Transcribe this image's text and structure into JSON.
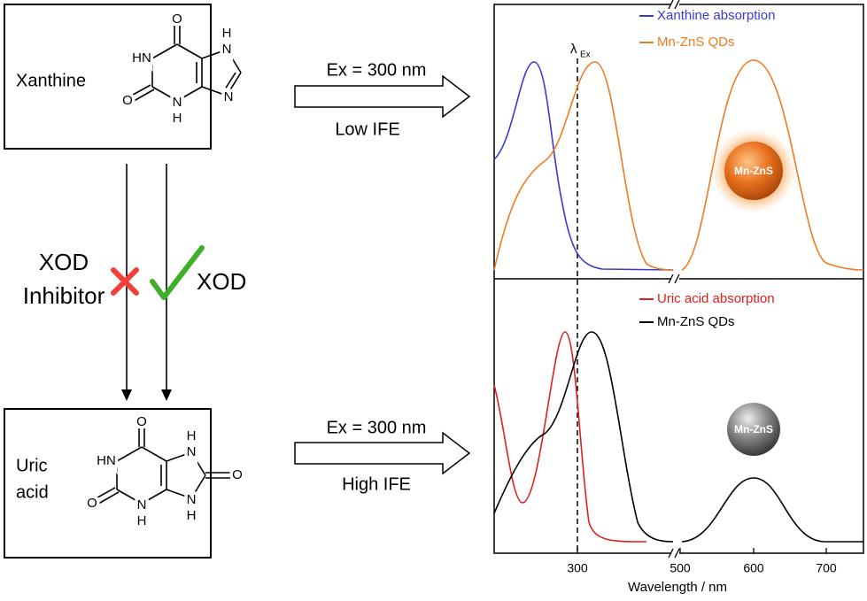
{
  "left": {
    "xanthine_label": "Xanthine",
    "uric_label": [
      "Uric",
      "acid"
    ],
    "xanthine_atoms": [
      "O",
      "HN",
      "O",
      "N",
      "H",
      "H",
      "N",
      "N"
    ],
    "uric_atoms": [
      "O",
      "HN",
      "O",
      "N",
      "H",
      "H",
      "N",
      "N",
      "H",
      "O"
    ],
    "xod_inhibitor": [
      "XOD",
      "Inhibitor"
    ],
    "xod": "XOD"
  },
  "arrows": {
    "top": {
      "ex": "Ex = 300 nm",
      "ife": "Low IFE"
    },
    "bottom": {
      "ex": "Ex = 300 nm",
      "ife": "High IFE"
    }
  },
  "spectra": {
    "top_legend": [
      "Xanthine absorption",
      "Mn-ZnS QDs"
    ],
    "bottom_legend": [
      "Uric acid absorption",
      "Mn-ZnS QDs"
    ],
    "lambda": "λ",
    "lambda_sub": "Ex",
    "sphere_labels": [
      "Mn-ZnS",
      "Mn-ZnS"
    ],
    "x_ticks": [
      300,
      500,
      600,
      700
    ],
    "x_label": "Wavelength / nm"
  }
}
